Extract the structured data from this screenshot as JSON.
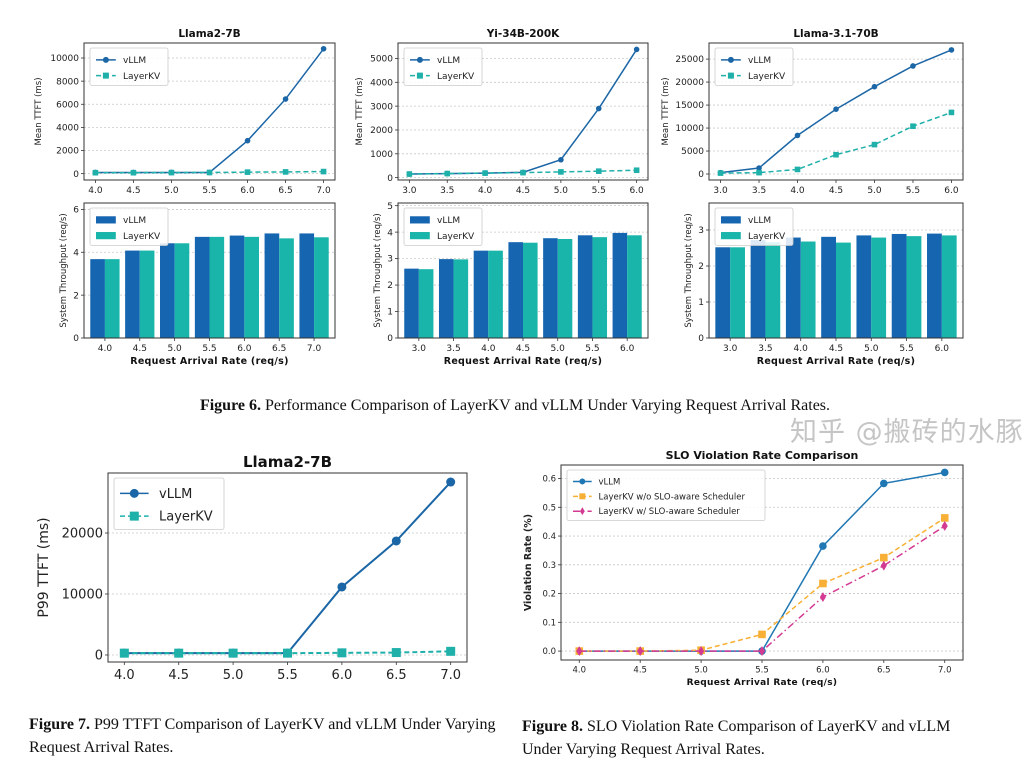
{
  "captions": {
    "fig6_label": "Figure 6.",
    "fig6_text": "Performance Comparison of LayerKV and vLLM Under Varying Request Arrival Rates.",
    "fig7_label": "Figure 7.",
    "fig7_text": "P99 TTFT Comparison of LayerKV and vLLM Under Varying Request Arrival Rates.",
    "fig8_label": "Figure 8.",
    "fig8_text": "SLO Violation Rate Comparison of LayerKV and vLLM Under Varying Request Arrival Rates."
  },
  "watermark": "知乎 @搬砖的水豚",
  "chart_data": [
    {
      "type": "line",
      "title": "Llama2-7B",
      "xlabel": "",
      "ylabel": "Mean TTFT (ms)",
      "categories": [
        "4.0",
        "4.5",
        "5.0",
        "5.5",
        "6.0",
        "6.5",
        "7.0"
      ],
      "yticks": [
        0,
        2000,
        4000,
        6000,
        8000,
        10000
      ],
      "ylim": [
        -550,
        11300
      ],
      "grid": true,
      "legend": "top-left",
      "series": [
        {
          "name": "vLLM",
          "values": [
            100,
            100,
            100,
            100,
            2850,
            6450,
            10800
          ],
          "color": "#1b66a6",
          "marker": "circle",
          "dash": "solid"
        },
        {
          "name": "LayerKV",
          "values": [
            80,
            80,
            90,
            100,
            130,
            150,
            180
          ],
          "color": "#1fb0aa",
          "marker": "square",
          "dash": "dashed"
        }
      ]
    },
    {
      "type": "line",
      "title": "Yi-34B-200K",
      "xlabel": "",
      "ylabel": "Mean TTFT (ms)",
      "categories": [
        "3.0",
        "3.5",
        "4.0",
        "4.5",
        "5.0",
        "5.5",
        "6.0"
      ],
      "yticks": [
        0,
        1000,
        2000,
        3000,
        4000,
        5000
      ],
      "ylim": [
        -100,
        5650
      ],
      "grid": true,
      "legend": "top-left",
      "series": [
        {
          "name": "vLLM",
          "values": [
            150,
            170,
            190,
            220,
            750,
            2900,
            5380
          ],
          "color": "#1b66a6",
          "marker": "circle",
          "dash": "solid"
        },
        {
          "name": "LayerKV",
          "values": [
            150,
            170,
            190,
            210,
            240,
            270,
            310
          ],
          "color": "#1fb0aa",
          "marker": "square",
          "dash": "dashed"
        }
      ]
    },
    {
      "type": "line",
      "title": "Llama-3.1-70B",
      "xlabel": "",
      "ylabel": "Mean TTFT (ms)",
      "categories": [
        "3.0",
        "3.5",
        "4.0",
        "4.5",
        "5.0",
        "5.5",
        "6.0"
      ],
      "yticks": [
        0,
        5000,
        10000,
        15000,
        20000,
        25000
      ],
      "ylim": [
        -1300,
        28500
      ],
      "grid": true,
      "legend": "top-left",
      "series": [
        {
          "name": "vLLM",
          "values": [
            300,
            1300,
            8400,
            14100,
            19000,
            23500,
            27000
          ],
          "color": "#1b66a6",
          "marker": "circle",
          "dash": "solid"
        },
        {
          "name": "LayerKV",
          "values": [
            200,
            300,
            1000,
            4200,
            6400,
            10400,
            13400
          ],
          "color": "#1fb0aa",
          "marker": "square",
          "dash": "dashed"
        }
      ]
    },
    {
      "type": "bar",
      "title": "",
      "xlabel": "Request Arrival Rate (req/s)",
      "ylabel": "System Throughput (req/s)",
      "categories": [
        "4.0",
        "4.5",
        "5.0",
        "5.5",
        "6.0",
        "6.5",
        "7.0"
      ],
      "yticks": [
        0,
        2,
        4,
        6
      ],
      "ylim": [
        0,
        6.3
      ],
      "grid": true,
      "legend": "top-left",
      "series": [
        {
          "name": "vLLM",
          "values": [
            3.68,
            4.08,
            4.42,
            4.72,
            4.78,
            4.88,
            4.88
          ],
          "color": "#1565b0"
        },
        {
          "name": "LayerKV",
          "values": [
            3.68,
            4.08,
            4.42,
            4.72,
            4.72,
            4.65,
            4.7
          ],
          "color": "#1ab5aa"
        }
      ]
    },
    {
      "type": "bar",
      "title": "",
      "xlabel": "Request Arrival Rate (req/s)",
      "ylabel": "System Throughput (req/s)",
      "categories": [
        "3.0",
        "3.5",
        "4.0",
        "4.5",
        "5.0",
        "5.5",
        "6.0"
      ],
      "yticks": [
        0,
        1,
        2,
        3,
        4,
        5
      ],
      "ylim": [
        0,
        5.1
      ],
      "grid": true,
      "legend": "top-left",
      "series": [
        {
          "name": "vLLM",
          "values": [
            2.62,
            2.98,
            3.3,
            3.62,
            3.77,
            3.88,
            3.97
          ],
          "color": "#1565b0"
        },
        {
          "name": "LayerKV",
          "values": [
            2.6,
            2.97,
            3.3,
            3.6,
            3.74,
            3.81,
            3.88
          ],
          "color": "#1ab5aa"
        }
      ]
    },
    {
      "type": "bar",
      "title": "",
      "xlabel": "Request Arrival Rate (req/s)",
      "ylabel": "System Throughput (req/s)",
      "categories": [
        "3.0",
        "3.5",
        "4.0",
        "4.5",
        "5.0",
        "5.5",
        "6.0"
      ],
      "yticks": [
        0,
        1,
        2,
        3
      ],
      "ylim": [
        0,
        3.75
      ],
      "grid": true,
      "legend": "top-left",
      "series": [
        {
          "name": "vLLM",
          "values": [
            2.52,
            2.72,
            2.79,
            2.81,
            2.85,
            2.89,
            2.9
          ],
          "color": "#1565b0"
        },
        {
          "name": "LayerKV",
          "values": [
            2.52,
            2.66,
            2.68,
            2.65,
            2.79,
            2.83,
            2.85
          ],
          "color": "#1ab5aa"
        }
      ]
    },
    {
      "type": "line",
      "title": "Llama2-7B",
      "xlabel": "",
      "ylabel": "P99 TTFT (ms)",
      "categories": [
        "4.0",
        "4.5",
        "5.0",
        "5.5",
        "6.0",
        "6.5",
        "7.0"
      ],
      "yticks": [
        0,
        10000,
        20000
      ],
      "ylim": [
        -1150,
        29840
      ],
      "grid": true,
      "legend": "top-left",
      "series": [
        {
          "name": "vLLM",
          "values": [
            300,
            300,
            300,
            300,
            11150,
            18700,
            28360
          ],
          "color": "#1b66a6",
          "marker": "circle",
          "dash": "solid"
        },
        {
          "name": "LayerKV",
          "values": [
            300,
            300,
            300,
            300,
            350,
            400,
            600
          ],
          "color": "#1fb0aa",
          "marker": "square",
          "dash": "dashed"
        }
      ]
    },
    {
      "type": "line",
      "title": "SLO Violation Rate Comparison",
      "xlabel": "Request Arrival Rate (req/s)",
      "ylabel": "Violation Rate (%)",
      "categories": [
        "4.0",
        "4.5",
        "5.0",
        "5.5",
        "6.0",
        "6.5",
        "7.0"
      ],
      "yticks": [
        "0.0",
        "0.1",
        "0.2",
        "0.3",
        "0.4",
        "0.5",
        "0.6"
      ],
      "ylim": [
        -0.031,
        0.647
      ],
      "grid": true,
      "legend": "top-left",
      "series": [
        {
          "name": "vLLM",
          "values": [
            0,
            0,
            0,
            0,
            0.365,
            0.583,
            0.621
          ],
          "color": "#1f77b4",
          "marker": "circle",
          "dash": "solid"
        },
        {
          "name": "LayerKV w/o SLO-aware Scheduler",
          "values": [
            0,
            0,
            0.003,
            0.058,
            0.235,
            0.325,
            0.463
          ],
          "color": "#f7b035",
          "marker": "square",
          "dash": "dashed"
        },
        {
          "name": "LayerKV w/ SLO-aware Scheduler",
          "values": [
            0,
            0,
            0,
            0,
            0.188,
            0.297,
            0.435
          ],
          "color": "#d33a92",
          "marker": "diamond",
          "dash": "dashdot"
        }
      ]
    }
  ]
}
